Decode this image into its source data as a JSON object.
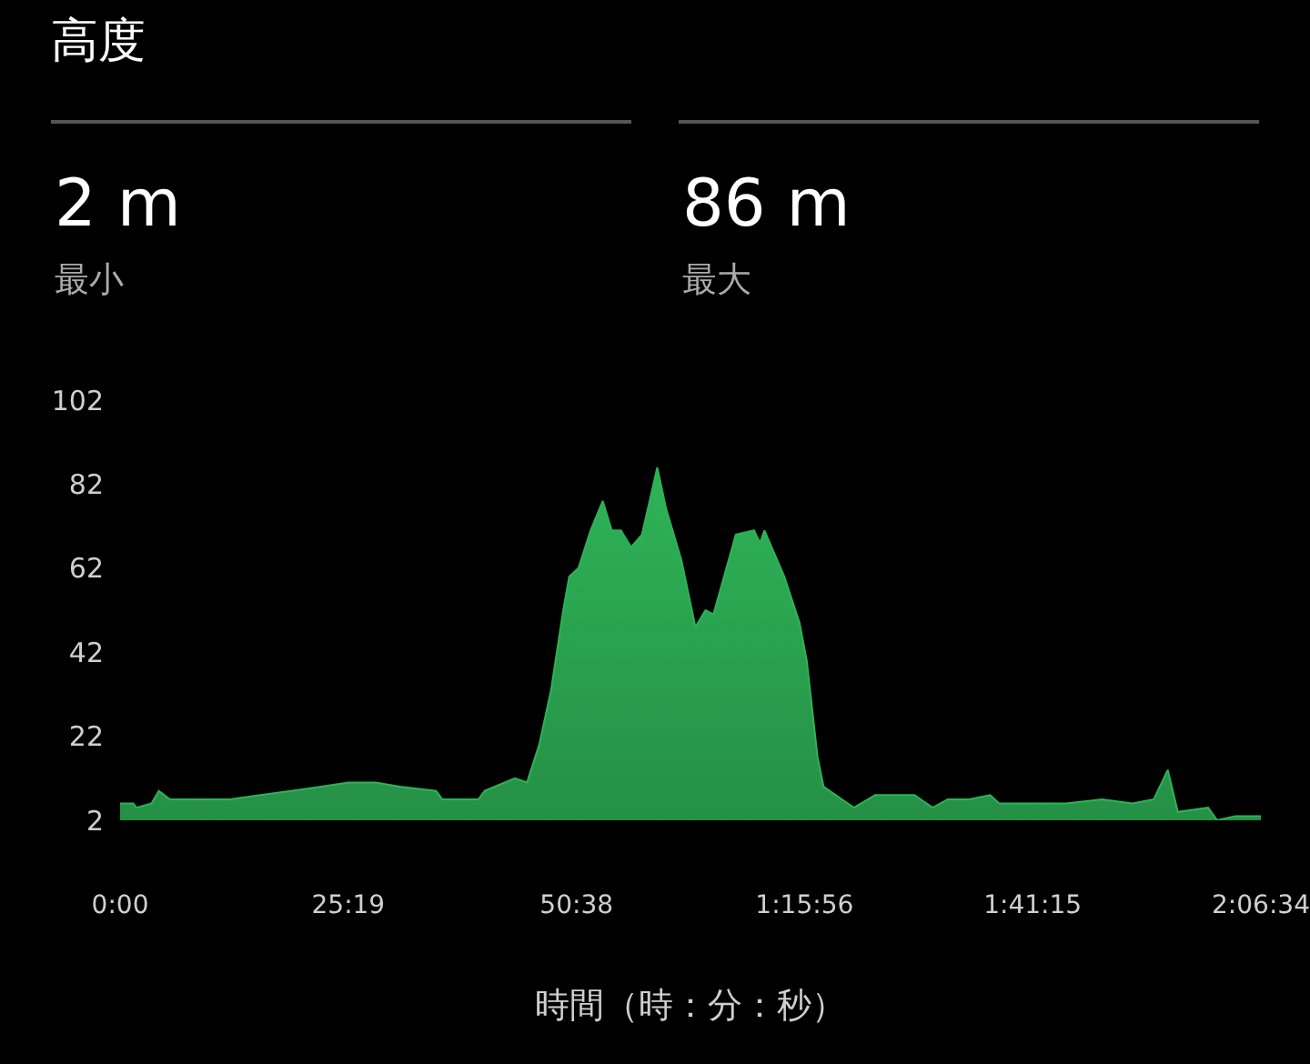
{
  "chart_data": {
    "type": "area",
    "title": "高度",
    "xlabel": "時間（時：分：秒）",
    "annotations": [
      "2 m",
      "最小",
      "86 m",
      "最大"
    ],
    "x": [
      0,
      88,
      109,
      209,
      258,
      330,
      532,
      734,
      935,
      1137,
      1339,
      1520,
      1701,
      1862,
      2104,
      2144,
      2386,
      2427,
      2628,
      2709,
      2790,
      2869,
      2950,
      2990,
      3051,
      3132,
      3213,
      3273,
      3334,
      3402,
      3474,
      3576,
      3636,
      3736,
      3830,
      3897,
      3950,
      4099,
      4220,
      4260,
      4289,
      4422,
      4523,
      4571,
      4643,
      4683,
      4845,
      4885,
      5027,
      5167,
      5288,
      5409,
      5510,
      5651,
      5792,
      5852,
      6094,
      6296,
      6538,
      6739,
      6881,
      6974,
      7041,
      7243,
      7303,
      7424,
      7594
    ],
    "series": [
      {
        "color": "#2eb357",
        "values": [
          6,
          6,
          5,
          6,
          9,
          7,
          7,
          7,
          8,
          9,
          10,
          11,
          11,
          10,
          9,
          7,
          7,
          9,
          12,
          11,
          20,
          33,
          52,
          60,
          62,
          71,
          78,
          71,
          71,
          67,
          70,
          86,
          76,
          64,
          48,
          52,
          51,
          70,
          71,
          68,
          71,
          60,
          49,
          40,
          17,
          10,
          6,
          5,
          8,
          8,
          8,
          5,
          7,
          7,
          8,
          6,
          6,
          6,
          7,
          6,
          7,
          14,
          4,
          5,
          2,
          3,
          3
        ]
      }
    ],
    "xlim": [
      0,
      7594
    ],
    "xticks": [
      {
        "value": 0,
        "label": "0:00"
      },
      {
        "value": 1519,
        "label": "25:19"
      },
      {
        "value": 3038,
        "label": "50:38"
      },
      {
        "value": 4556,
        "label": "1:15:56"
      },
      {
        "value": 6075,
        "label": "1:41:15"
      },
      {
        "value": 7594,
        "label": "2:06:34"
      }
    ],
    "ylim": [
      2,
      102
    ],
    "yticks": [
      2,
      22,
      42,
      62,
      82,
      102
    ]
  }
}
